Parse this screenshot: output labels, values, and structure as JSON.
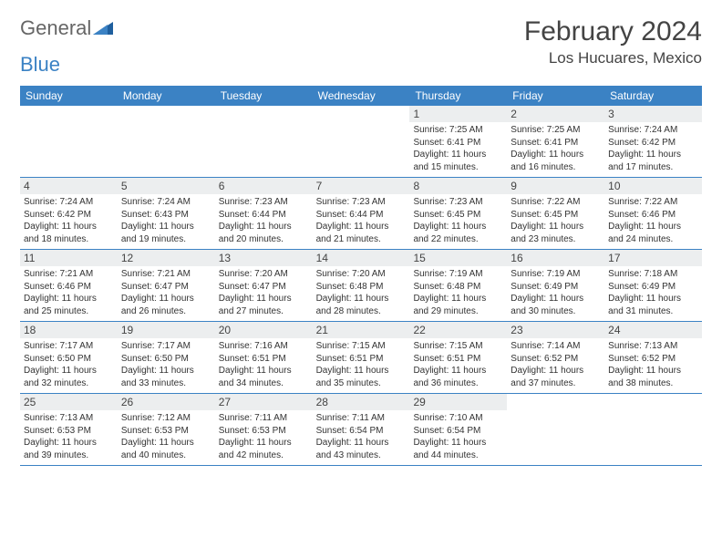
{
  "logo": {
    "general": "General",
    "blue": "Blue"
  },
  "title": "February 2024",
  "location": "Los Hucuares, Mexico",
  "colors": {
    "brand": "#3b82c4",
    "daynum_bg": "#eceeef",
    "text": "#333333",
    "bg": "#ffffff"
  },
  "weekdays": [
    "Sunday",
    "Monday",
    "Tuesday",
    "Wednesday",
    "Thursday",
    "Friday",
    "Saturday"
  ],
  "weeks": [
    [
      {
        "n": "",
        "sr": "",
        "ss": "",
        "dl": ""
      },
      {
        "n": "",
        "sr": "",
        "ss": "",
        "dl": ""
      },
      {
        "n": "",
        "sr": "",
        "ss": "",
        "dl": ""
      },
      {
        "n": "",
        "sr": "",
        "ss": "",
        "dl": ""
      },
      {
        "n": "1",
        "sr": "Sunrise: 7:25 AM",
        "ss": "Sunset: 6:41 PM",
        "dl": "Daylight: 11 hours and 15 minutes."
      },
      {
        "n": "2",
        "sr": "Sunrise: 7:25 AM",
        "ss": "Sunset: 6:41 PM",
        "dl": "Daylight: 11 hours and 16 minutes."
      },
      {
        "n": "3",
        "sr": "Sunrise: 7:24 AM",
        "ss": "Sunset: 6:42 PM",
        "dl": "Daylight: 11 hours and 17 minutes."
      }
    ],
    [
      {
        "n": "4",
        "sr": "Sunrise: 7:24 AM",
        "ss": "Sunset: 6:42 PM",
        "dl": "Daylight: 11 hours and 18 minutes."
      },
      {
        "n": "5",
        "sr": "Sunrise: 7:24 AM",
        "ss": "Sunset: 6:43 PM",
        "dl": "Daylight: 11 hours and 19 minutes."
      },
      {
        "n": "6",
        "sr": "Sunrise: 7:23 AM",
        "ss": "Sunset: 6:44 PM",
        "dl": "Daylight: 11 hours and 20 minutes."
      },
      {
        "n": "7",
        "sr": "Sunrise: 7:23 AM",
        "ss": "Sunset: 6:44 PM",
        "dl": "Daylight: 11 hours and 21 minutes."
      },
      {
        "n": "8",
        "sr": "Sunrise: 7:23 AM",
        "ss": "Sunset: 6:45 PM",
        "dl": "Daylight: 11 hours and 22 minutes."
      },
      {
        "n": "9",
        "sr": "Sunrise: 7:22 AM",
        "ss": "Sunset: 6:45 PM",
        "dl": "Daylight: 11 hours and 23 minutes."
      },
      {
        "n": "10",
        "sr": "Sunrise: 7:22 AM",
        "ss": "Sunset: 6:46 PM",
        "dl": "Daylight: 11 hours and 24 minutes."
      }
    ],
    [
      {
        "n": "11",
        "sr": "Sunrise: 7:21 AM",
        "ss": "Sunset: 6:46 PM",
        "dl": "Daylight: 11 hours and 25 minutes."
      },
      {
        "n": "12",
        "sr": "Sunrise: 7:21 AM",
        "ss": "Sunset: 6:47 PM",
        "dl": "Daylight: 11 hours and 26 minutes."
      },
      {
        "n": "13",
        "sr": "Sunrise: 7:20 AM",
        "ss": "Sunset: 6:47 PM",
        "dl": "Daylight: 11 hours and 27 minutes."
      },
      {
        "n": "14",
        "sr": "Sunrise: 7:20 AM",
        "ss": "Sunset: 6:48 PM",
        "dl": "Daylight: 11 hours and 28 minutes."
      },
      {
        "n": "15",
        "sr": "Sunrise: 7:19 AM",
        "ss": "Sunset: 6:48 PM",
        "dl": "Daylight: 11 hours and 29 minutes."
      },
      {
        "n": "16",
        "sr": "Sunrise: 7:19 AM",
        "ss": "Sunset: 6:49 PM",
        "dl": "Daylight: 11 hours and 30 minutes."
      },
      {
        "n": "17",
        "sr": "Sunrise: 7:18 AM",
        "ss": "Sunset: 6:49 PM",
        "dl": "Daylight: 11 hours and 31 minutes."
      }
    ],
    [
      {
        "n": "18",
        "sr": "Sunrise: 7:17 AM",
        "ss": "Sunset: 6:50 PM",
        "dl": "Daylight: 11 hours and 32 minutes."
      },
      {
        "n": "19",
        "sr": "Sunrise: 7:17 AM",
        "ss": "Sunset: 6:50 PM",
        "dl": "Daylight: 11 hours and 33 minutes."
      },
      {
        "n": "20",
        "sr": "Sunrise: 7:16 AM",
        "ss": "Sunset: 6:51 PM",
        "dl": "Daylight: 11 hours and 34 minutes."
      },
      {
        "n": "21",
        "sr": "Sunrise: 7:15 AM",
        "ss": "Sunset: 6:51 PM",
        "dl": "Daylight: 11 hours and 35 minutes."
      },
      {
        "n": "22",
        "sr": "Sunrise: 7:15 AM",
        "ss": "Sunset: 6:51 PM",
        "dl": "Daylight: 11 hours and 36 minutes."
      },
      {
        "n": "23",
        "sr": "Sunrise: 7:14 AM",
        "ss": "Sunset: 6:52 PM",
        "dl": "Daylight: 11 hours and 37 minutes."
      },
      {
        "n": "24",
        "sr": "Sunrise: 7:13 AM",
        "ss": "Sunset: 6:52 PM",
        "dl": "Daylight: 11 hours and 38 minutes."
      }
    ],
    [
      {
        "n": "25",
        "sr": "Sunrise: 7:13 AM",
        "ss": "Sunset: 6:53 PM",
        "dl": "Daylight: 11 hours and 39 minutes."
      },
      {
        "n": "26",
        "sr": "Sunrise: 7:12 AM",
        "ss": "Sunset: 6:53 PM",
        "dl": "Daylight: 11 hours and 40 minutes."
      },
      {
        "n": "27",
        "sr": "Sunrise: 7:11 AM",
        "ss": "Sunset: 6:53 PM",
        "dl": "Daylight: 11 hours and 42 minutes."
      },
      {
        "n": "28",
        "sr": "Sunrise: 7:11 AM",
        "ss": "Sunset: 6:54 PM",
        "dl": "Daylight: 11 hours and 43 minutes."
      },
      {
        "n": "29",
        "sr": "Sunrise: 7:10 AM",
        "ss": "Sunset: 6:54 PM",
        "dl": "Daylight: 11 hours and 44 minutes."
      },
      {
        "n": "",
        "sr": "",
        "ss": "",
        "dl": ""
      },
      {
        "n": "",
        "sr": "",
        "ss": "",
        "dl": ""
      }
    ]
  ]
}
